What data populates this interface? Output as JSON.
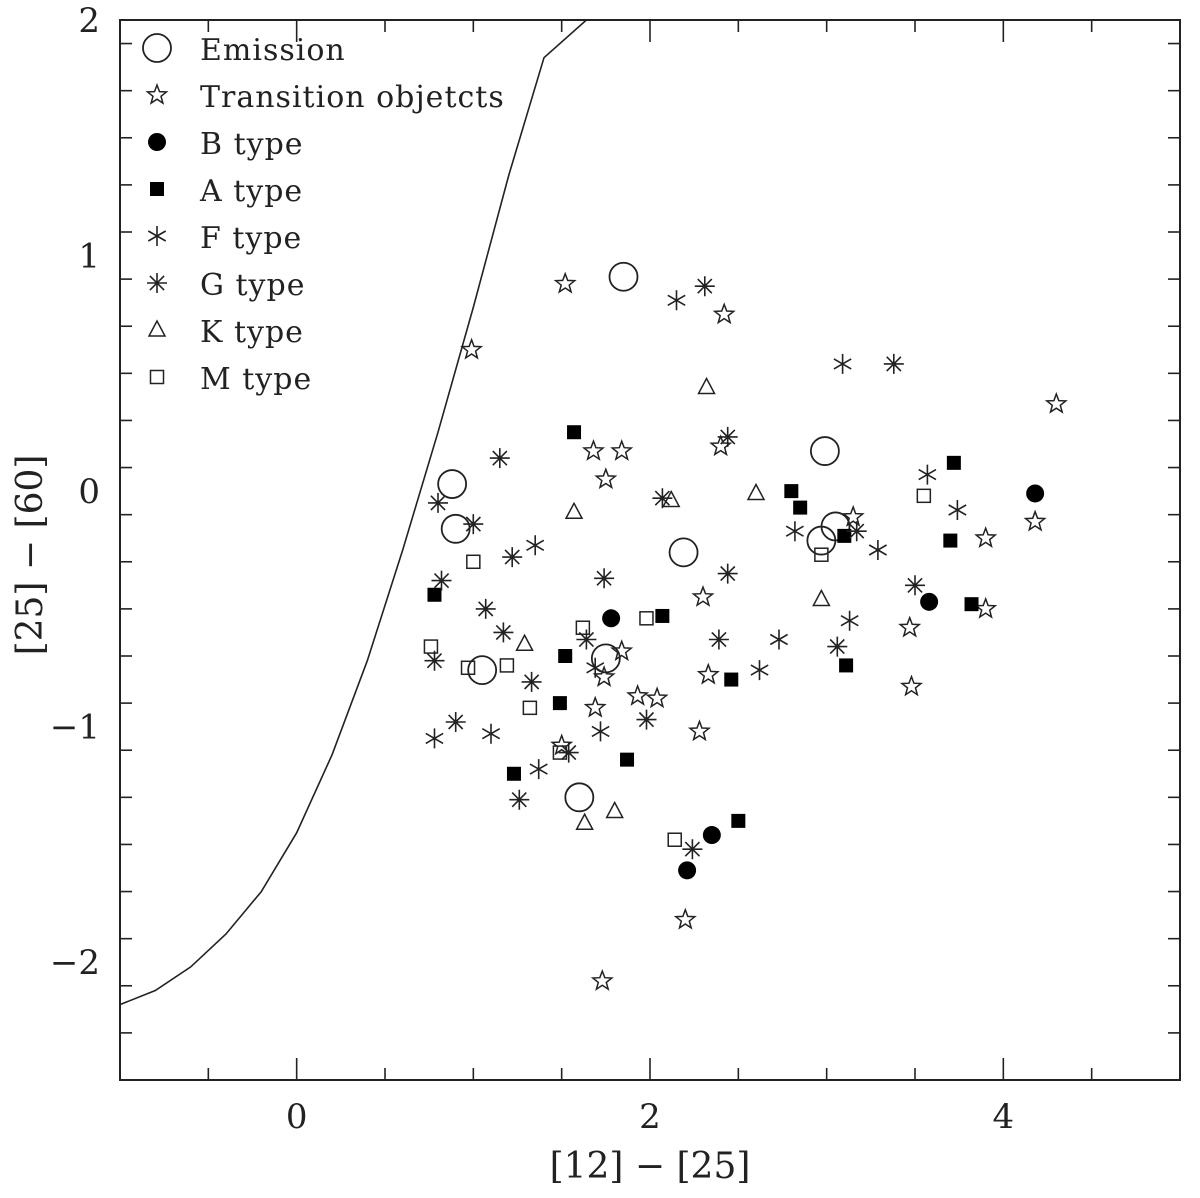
{
  "chart_data": {
    "type": "scatter",
    "xlabel": "[12] − [25]",
    "ylabel": "[25] − [60]",
    "xlim": [
      -1.0,
      5.0
    ],
    "ylim": [
      -2.5,
      2.0
    ],
    "x_ticks": [
      0,
      2,
      4
    ],
    "x_tick_labels": [
      "0",
      "2",
      "4"
    ],
    "y_ticks": [
      -2,
      -1,
      0,
      1,
      2
    ],
    "y_tick_labels": [
      "−2",
      "−1",
      "0",
      "1",
      "2"
    ],
    "legend_position": "top-left",
    "grid": false,
    "legend": [
      {
        "marker": "circle-open",
        "label": "Emission"
      },
      {
        "marker": "star-open",
        "label": "Transition objetcts"
      },
      {
        "marker": "circle-filled",
        "label": "B type"
      },
      {
        "marker": "square-filled",
        "label": "A type"
      },
      {
        "marker": "star6",
        "label": "F type"
      },
      {
        "marker": "star8",
        "label": "G type"
      },
      {
        "marker": "triangle-open",
        "label": "K type"
      },
      {
        "marker": "square-open",
        "label": "M type"
      }
    ],
    "curve": {
      "style": "solid",
      "points": [
        [
          -1.0,
          -2.18
        ],
        [
          -0.8,
          -2.12
        ],
        [
          -0.6,
          -2.02
        ],
        [
          -0.4,
          -1.88
        ],
        [
          -0.2,
          -1.7
        ],
        [
          0.0,
          -1.45
        ],
        [
          0.2,
          -1.12
        ],
        [
          0.4,
          -0.72
        ],
        [
          0.6,
          -0.25
        ],
        [
          0.8,
          0.25
        ],
        [
          1.0,
          0.78
        ],
        [
          1.2,
          1.34
        ],
        [
          1.4,
          1.84
        ],
        [
          1.64,
          2.0
        ]
      ]
    },
    "series": [
      {
        "name": "Emission",
        "marker": "circle-open",
        "points": [
          [
            0.88,
            0.03
          ],
          [
            0.9,
            -0.16
          ],
          [
            1.85,
            0.91
          ],
          [
            2.99,
            0.17
          ],
          [
            2.19,
            -0.26
          ],
          [
            1.05,
            -0.76
          ],
          [
            1.6,
            -1.3
          ],
          [
            1.75,
            -0.71
          ],
          [
            3.05,
            -0.15
          ],
          [
            2.97,
            -0.21
          ]
        ]
      },
      {
        "name": "Transition objetcts",
        "marker": "star-open",
        "points": [
          [
            1.52,
            0.88
          ],
          [
            0.99,
            0.6
          ],
          [
            2.42,
            0.75
          ],
          [
            1.75,
            0.05
          ],
          [
            1.68,
            0.17
          ],
          [
            1.84,
            0.17
          ],
          [
            2.4,
            0.19
          ],
          [
            4.3,
            0.37
          ],
          [
            3.15,
            -0.11
          ],
          [
            3.9,
            -0.2
          ],
          [
            4.18,
            -0.13
          ],
          [
            3.47,
            -0.58
          ],
          [
            3.9,
            -0.5
          ],
          [
            3.48,
            -0.83
          ],
          [
            2.3,
            -0.45
          ],
          [
            2.33,
            -0.78
          ],
          [
            2.28,
            -1.02
          ],
          [
            1.84,
            -0.68
          ],
          [
            1.74,
            -0.79
          ],
          [
            1.69,
            -0.92
          ],
          [
            1.93,
            -0.87
          ],
          [
            2.04,
            -0.88
          ],
          [
            1.5,
            -1.08
          ],
          [
            2.2,
            -1.82
          ],
          [
            1.73,
            -2.08
          ]
        ]
      },
      {
        "name": "B type",
        "marker": "circle-filled",
        "points": [
          [
            4.18,
            -0.01
          ],
          [
            3.58,
            -0.47
          ],
          [
            1.78,
            -0.54
          ],
          [
            2.35,
            -1.46
          ],
          [
            2.21,
            -1.61
          ]
        ]
      },
      {
        "name": "A type",
        "marker": "square-filled",
        "points": [
          [
            1.57,
            0.25
          ],
          [
            2.8,
            0.0
          ],
          [
            2.85,
            -0.07
          ],
          [
            3.72,
            0.12
          ],
          [
            3.7,
            -0.21
          ],
          [
            3.1,
            -0.19
          ],
          [
            3.82,
            -0.48
          ],
          [
            3.11,
            -0.74
          ],
          [
            2.07,
            -0.53
          ],
          [
            2.46,
            -0.8
          ],
          [
            1.52,
            -0.7
          ],
          [
            1.49,
            -0.9
          ],
          [
            0.78,
            -0.44
          ],
          [
            1.23,
            -1.2
          ],
          [
            1.87,
            -1.14
          ],
          [
            2.5,
            -1.4
          ]
        ]
      },
      {
        "name": "F type",
        "marker": "star6",
        "points": [
          [
            2.15,
            0.81
          ],
          [
            3.09,
            0.54
          ],
          [
            3.57,
            0.07
          ],
          [
            3.74,
            -0.08
          ],
          [
            2.82,
            -0.17
          ],
          [
            3.29,
            -0.25
          ],
          [
            3.13,
            -0.55
          ],
          [
            2.73,
            -0.63
          ],
          [
            2.62,
            -0.76
          ],
          [
            1.69,
            -0.75
          ],
          [
            1.72,
            -1.02
          ],
          [
            1.1,
            -1.03
          ],
          [
            1.37,
            -1.18
          ],
          [
            0.78,
            -1.05
          ],
          [
            1.35,
            -0.23
          ]
        ]
      },
      {
        "name": "G type",
        "marker": "star8",
        "points": [
          [
            2.31,
            0.87
          ],
          [
            3.38,
            0.54
          ],
          [
            2.44,
            0.23
          ],
          [
            2.07,
            -0.03
          ],
          [
            3.17,
            -0.17
          ],
          [
            3.5,
            -0.4
          ],
          [
            2.44,
            -0.35
          ],
          [
            2.39,
            -0.63
          ],
          [
            1.74,
            -0.37
          ],
          [
            1.64,
            -0.63
          ],
          [
            1.33,
            -0.81
          ],
          [
            1.98,
            -0.97
          ],
          [
            1.54,
            -1.11
          ],
          [
            0.82,
            -0.38
          ],
          [
            0.78,
            -0.72
          ],
          [
            0.9,
            -0.98
          ],
          [
            1.0,
            -0.14
          ],
          [
            1.22,
            -0.28
          ],
          [
            1.07,
            -0.5
          ],
          [
            1.17,
            -0.6
          ],
          [
            0.8,
            -0.05
          ],
          [
            1.15,
            0.14
          ],
          [
            2.24,
            -1.52
          ],
          [
            1.26,
            -1.31
          ],
          [
            3.06,
            -0.66
          ]
        ]
      },
      {
        "name": "K type",
        "marker": "triangle-open",
        "points": [
          [
            2.32,
            0.44
          ],
          [
            2.6,
            -0.01
          ],
          [
            2.12,
            -0.04
          ],
          [
            1.57,
            -0.09
          ],
          [
            2.97,
            -0.46
          ],
          [
            1.29,
            -0.65
          ],
          [
            1.8,
            -1.36
          ],
          [
            1.63,
            -1.41
          ]
        ]
      },
      {
        "name": "M type",
        "marker": "square-open",
        "points": [
          [
            3.55,
            -0.02
          ],
          [
            2.97,
            -0.27
          ],
          [
            1.62,
            -0.58
          ],
          [
            1.98,
            -0.54
          ],
          [
            1.0,
            -0.3
          ],
          [
            0.76,
            -0.66
          ],
          [
            0.97,
            -0.75
          ],
          [
            1.19,
            -0.74
          ],
          [
            1.32,
            -0.92
          ],
          [
            1.49,
            -1.11
          ],
          [
            2.14,
            -1.48
          ]
        ]
      }
    ]
  }
}
